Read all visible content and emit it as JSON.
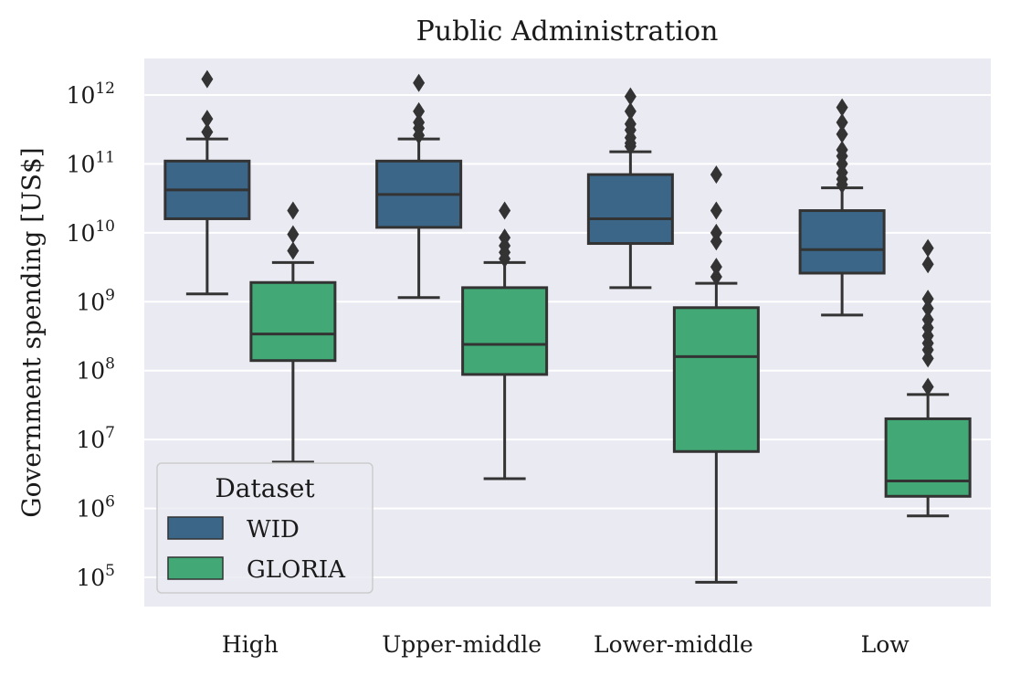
{
  "chart_data": {
    "type": "boxplot",
    "title": "Public Administration",
    "xlabel": "",
    "ylabel": "Government spending [US$]",
    "yscale": "log",
    "ylim": [
      40000,
      3500000000000
    ],
    "yticks": [
      {
        "base": "10",
        "exp": "5",
        "value": 100000
      },
      {
        "base": "10",
        "exp": "6",
        "value": 1000000
      },
      {
        "base": "10",
        "exp": "7",
        "value": 10000000
      },
      {
        "base": "10",
        "exp": "8",
        "value": 100000000
      },
      {
        "base": "10",
        "exp": "9",
        "value": 1000000000
      },
      {
        "base": "10",
        "exp": "10",
        "value": 10000000000
      },
      {
        "base": "10",
        "exp": "11",
        "value": 100000000000
      },
      {
        "base": "10",
        "exp": "12",
        "value": 1000000000000
      }
    ],
    "categories": [
      "High",
      "Upper-middle",
      "Lower-middle",
      "Low"
    ],
    "legend": {
      "title": "Dataset",
      "position": "lower-left"
    },
    "grid": true,
    "series": [
      {
        "name": "WID",
        "color": "#3b6688",
        "boxes": [
          {
            "whislo": 1300000000,
            "q1": 16000000000,
            "med": 42000000000,
            "q3": 110000000000,
            "whishi": 230000000000,
            "fliers": [
              290000000000,
              450000000000,
              1700000000000
            ]
          },
          {
            "whislo": 1150000000,
            "q1": 12000000000,
            "med": 36000000000,
            "q3": 110000000000,
            "whishi": 230000000000,
            "fliers": [
              260000000000,
              330000000000,
              400000000000,
              580000000000,
              1500000000000
            ]
          },
          {
            "whislo": 1600000000,
            "q1": 7000000000,
            "med": 16000000000,
            "q3": 70000000000,
            "whishi": 150000000000,
            "fliers": [
              180000000000,
              200000000000,
              240000000000,
              310000000000,
              380000000000,
              580000000000,
              950000000000
            ]
          },
          {
            "whislo": 640000000,
            "q1": 2600000000,
            "med": 5700000000,
            "q3": 21000000000,
            "whishi": 45000000000,
            "fliers": [
              50000000000,
              60000000000,
              75000000000,
              100000000000,
              130000000000,
              160000000000,
              270000000000,
              400000000000,
              660000000000
            ]
          }
        ]
      },
      {
        "name": "GLORIA",
        "color": "#42a876",
        "boxes": [
          {
            "whislo": 4700000,
            "q1": 140000000,
            "med": 340000000,
            "q3": 1900000000,
            "whishi": 3700000000,
            "fliers": [
              5500000000,
              9500000000,
              21000000000
            ]
          },
          {
            "whislo": 2700000,
            "q1": 88000000,
            "med": 240000000,
            "q3": 1600000000,
            "whishi": 3700000000,
            "fliers": [
              4200000000,
              5200000000,
              6500000000,
              8500000000,
              21000000000
            ]
          },
          {
            "whislo": 85000,
            "q1": 6700000,
            "med": 160000000,
            "q3": 820000000,
            "whishi": 1850000000,
            "fliers": [
              2300000000,
              3200000000,
              7500000000,
              10000000000,
              21000000000,
              70000000000
            ]
          },
          {
            "whislo": 780000,
            "q1": 1500000,
            "med": 2500000,
            "q3": 20000000,
            "whishi": 45000000,
            "fliers": [
              58000000,
              150000000,
              200000000,
              250000000,
              320000000,
              420000000,
              550000000,
              800000000,
              1100000000,
              3500000000,
              6000000000
            ]
          }
        ]
      }
    ]
  }
}
